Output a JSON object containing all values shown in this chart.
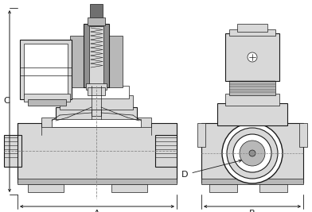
{
  "background_color": "#ffffff",
  "line_color": "#1a1a1a",
  "gray_light": "#d8d8d8",
  "gray_med": "#b8b8b8",
  "gray_dark": "#909090",
  "gray_xdark": "#707070",
  "dashed_color": "#888888",
  "label_A": "A",
  "label_B": "B",
  "label_C": "C",
  "label_D": "D",
  "font_size": 8
}
